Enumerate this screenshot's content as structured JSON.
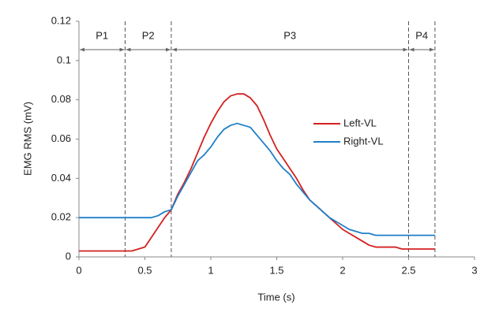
{
  "chart_data": {
    "type": "line",
    "x_label": "Time (s)",
    "y_label": "EMG RMS (mV)",
    "xlim": [
      0,
      3
    ],
    "xticks": [
      0,
      0.5,
      1,
      1.5,
      2,
      2.5,
      3
    ],
    "ylim": [
      0,
      0.12
    ],
    "yticks": [
      0,
      0.02,
      0.04,
      0.06,
      0.08,
      0.1,
      0.12
    ],
    "grid": false,
    "legend": "right",
    "phases": [
      {
        "label": "P1",
        "start": 0,
        "end": 0.35
      },
      {
        "label": "P2",
        "start": 0.35,
        "end": 0.7
      },
      {
        "label": "P3",
        "start": 0.7,
        "end": 2.5
      },
      {
        "label": "P4",
        "start": 2.5,
        "end": 2.7
      }
    ],
    "x": [
      0,
      0.05,
      0.1,
      0.15,
      0.2,
      0.25,
      0.3,
      0.35,
      0.4,
      0.45,
      0.5,
      0.55,
      0.6,
      0.65,
      0.7,
      0.75,
      0.8,
      0.85,
      0.9,
      0.95,
      1,
      1.05,
      1.1,
      1.15,
      1.2,
      1.25,
      1.3,
      1.35,
      1.4,
      1.45,
      1.5,
      1.55,
      1.6,
      1.65,
      1.7,
      1.75,
      1.8,
      1.85,
      1.9,
      1.95,
      2,
      2.05,
      2.1,
      2.15,
      2.2,
      2.25,
      2.3,
      2.35,
      2.4,
      2.45,
      2.5,
      2.55,
      2.6,
      2.65,
      2.7
    ],
    "series": [
      {
        "name": "Left-VL",
        "color": "#d42020",
        "values": [
          0.003,
          0.003,
          0.003,
          0.003,
          0.003,
          0.003,
          0.003,
          0.003,
          0.003,
          0.004,
          0.005,
          0.01,
          0.015,
          0.02,
          0.024,
          0.032,
          0.038,
          0.045,
          0.053,
          0.061,
          0.068,
          0.074,
          0.079,
          0.082,
          0.083,
          0.083,
          0.081,
          0.077,
          0.07,
          0.062,
          0.055,
          0.05,
          0.045,
          0.04,
          0.034,
          0.029,
          0.026,
          0.023,
          0.02,
          0.017,
          0.014,
          0.012,
          0.01,
          0.008,
          0.006,
          0.005,
          0.005,
          0.005,
          0.005,
          0.004,
          0.004,
          0.004,
          0.004,
          0.004,
          0.004
        ]
      },
      {
        "name": "Right-VL",
        "color": "#1f7fc8",
        "values": [
          0.02,
          0.02,
          0.02,
          0.02,
          0.02,
          0.02,
          0.02,
          0.02,
          0.02,
          0.02,
          0.02,
          0.02,
          0.021,
          0.023,
          0.024,
          0.031,
          0.037,
          0.043,
          0.049,
          0.052,
          0.056,
          0.061,
          0.065,
          0.067,
          0.068,
          0.067,
          0.066,
          0.062,
          0.058,
          0.054,
          0.049,
          0.045,
          0.042,
          0.037,
          0.033,
          0.029,
          0.026,
          0.023,
          0.02,
          0.018,
          0.016,
          0.014,
          0.013,
          0.012,
          0.012,
          0.011,
          0.011,
          0.011,
          0.011,
          0.011,
          0.011,
          0.011,
          0.011,
          0.011,
          0.011
        ]
      }
    ]
  }
}
